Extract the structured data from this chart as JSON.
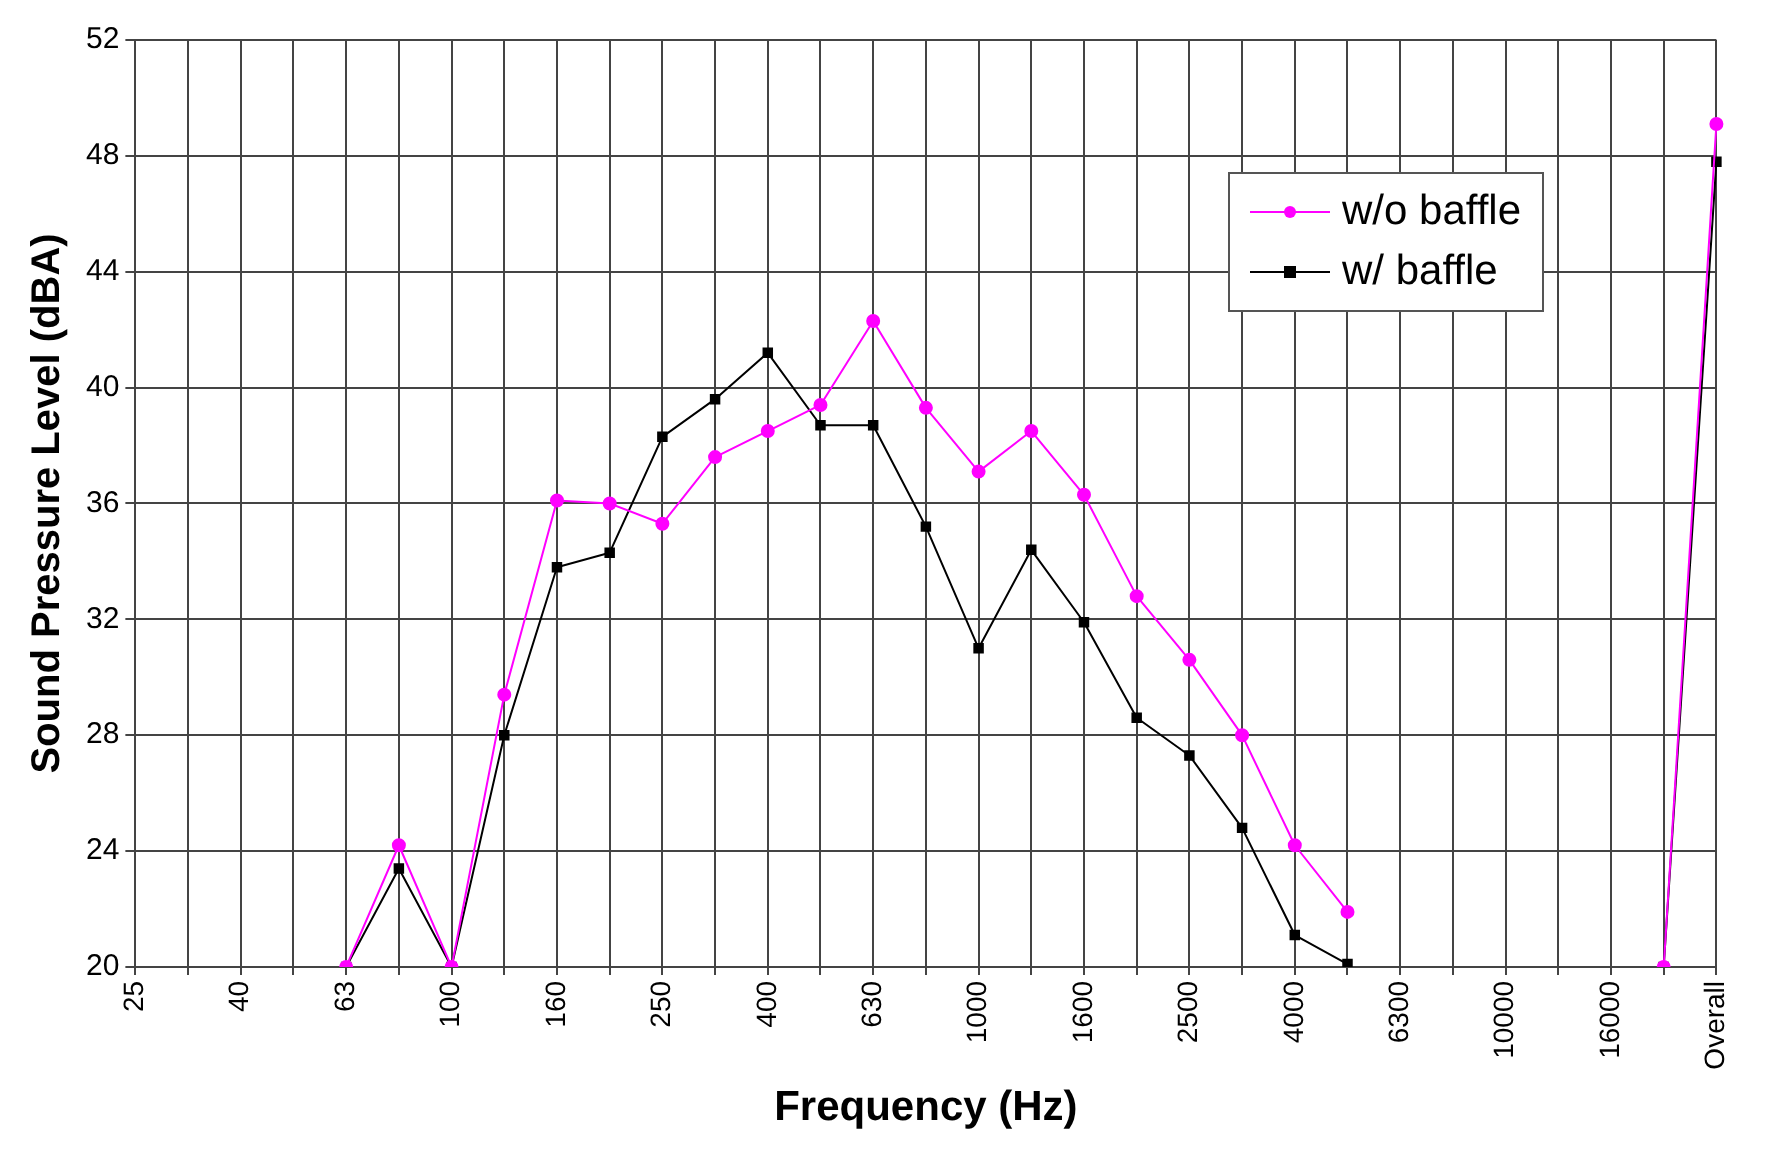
{
  "chart_data": {
    "type": "line",
    "xlabel": "Frequency (Hz)",
    "ylabel": "Sound Pressure Level (dBA)",
    "categories": [
      "25",
      null,
      "40",
      null,
      "63",
      null,
      "100",
      null,
      "160",
      null,
      "250",
      null,
      "400",
      null,
      "630",
      null,
      "1000",
      null,
      "1600",
      null,
      "2500",
      null,
      "4000",
      null,
      "6300",
      null,
      "10000",
      null,
      "16000",
      null,
      "Overall"
    ],
    "series": [
      {
        "name": "w/o baffle",
        "color": "#ff00ff",
        "marker": "circle",
        "values": [
          null,
          null,
          null,
          null,
          20,
          24.2,
          20,
          29.4,
          36.1,
          36.0,
          35.3,
          37.6,
          38.5,
          39.4,
          42.3,
          39.3,
          37.1,
          38.5,
          36.3,
          32.8,
          30.6,
          28.0,
          24.2,
          21.9,
          null,
          null,
          null,
          null,
          null,
          20,
          49.1
        ]
      },
      {
        "name": "w/ baffle",
        "color": "#000000",
        "marker": "square",
        "values": [
          null,
          null,
          null,
          null,
          20,
          23.4,
          20,
          28.0,
          33.8,
          34.3,
          38.3,
          39.6,
          41.2,
          38.7,
          38.7,
          35.2,
          31.0,
          34.4,
          31.9,
          28.6,
          27.3,
          24.8,
          21.1,
          20.1,
          null,
          null,
          null,
          null,
          null,
          20,
          47.8
        ]
      }
    ],
    "ylim": [
      20,
      52
    ],
    "yticks": [
      20,
      24,
      28,
      32,
      36,
      40,
      44,
      48,
      52
    ],
    "grid": true,
    "legend": "top right"
  }
}
